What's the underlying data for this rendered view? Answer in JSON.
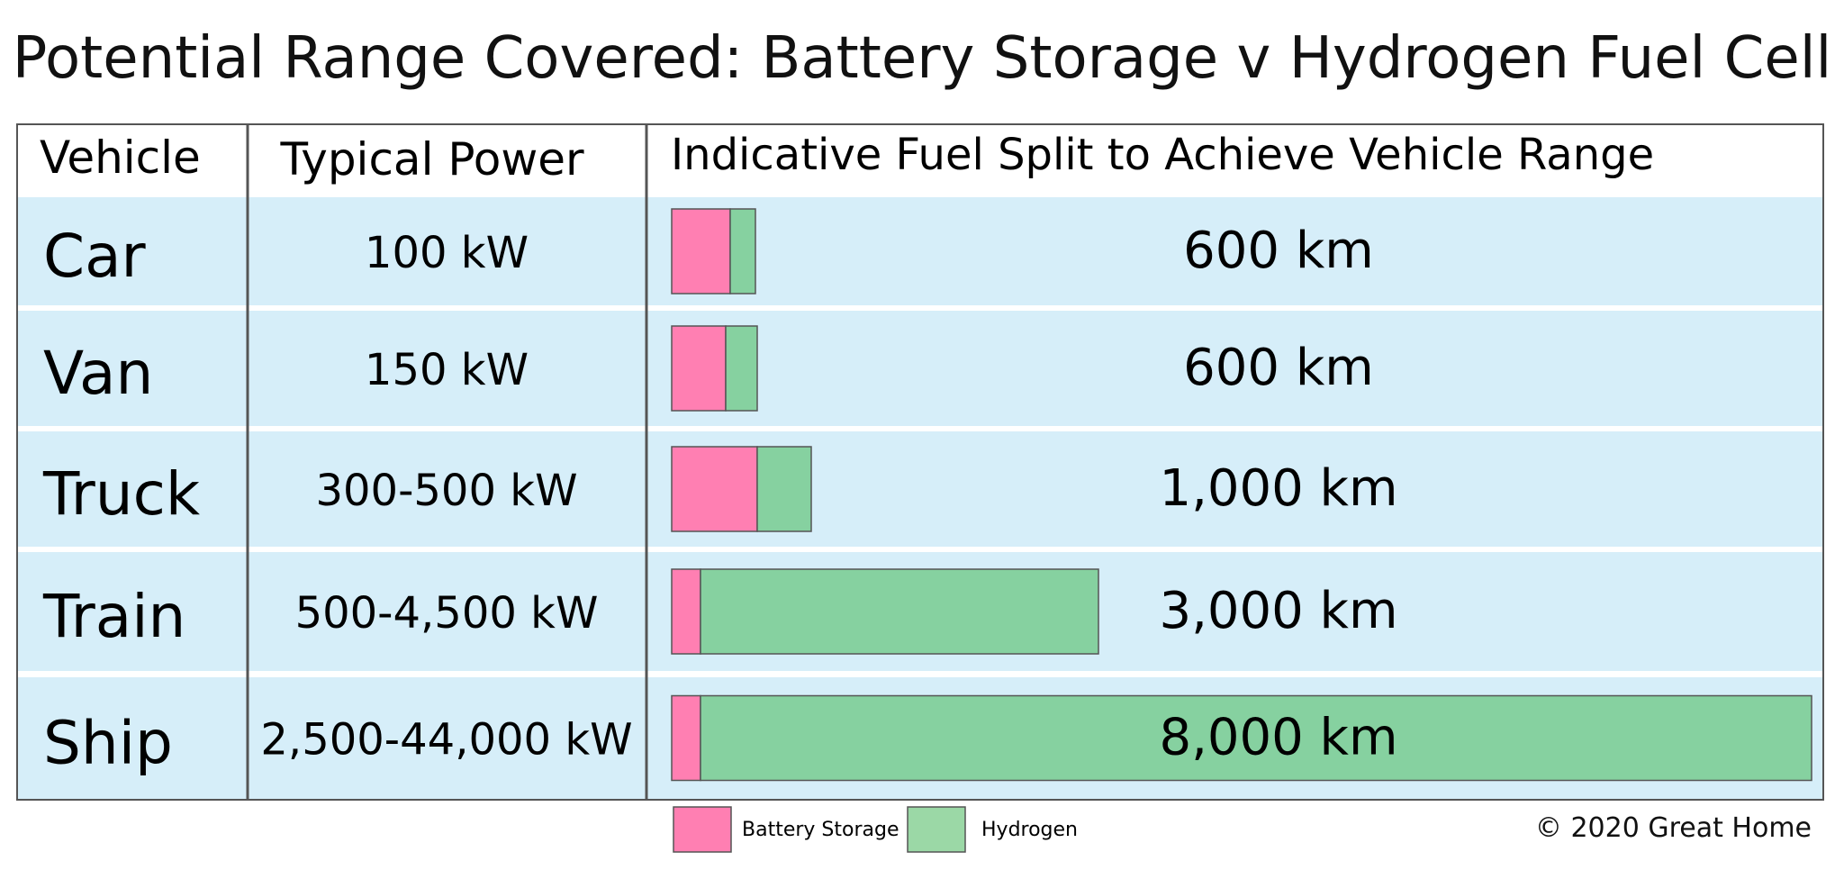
{
  "title": "Potential Range Covered: Battery Storage v Hydrogen Fuel Cell",
  "copyright": "© 2020 Great Home",
  "colors": {
    "row_bg": "#d6eef9",
    "battery": "#ff7fb2",
    "hydrogen": "#86d1a0",
    "legend_hydrogen": "#9bd8a6",
    "border": "#555555"
  },
  "chart_data": {
    "type": "table",
    "headers": [
      "Vehicle",
      "Typical Power",
      "Indicative Fuel Split to Achieve Vehicle Range"
    ],
    "rows": [
      {
        "vehicle": "Car",
        "power": "100 kW",
        "range_label": "600 km",
        "range_km": 600,
        "battery": 65,
        "hydrogen": 28
      },
      {
        "vehicle": "Van",
        "power": "150 kW",
        "range_label": "600 km",
        "range_km": 600,
        "battery": 60,
        "hydrogen": 35
      },
      {
        "vehicle": "Truck",
        "power": "300-500 kW",
        "range_label": "1,000 km",
        "range_km": 1000,
        "battery": 95,
        "hydrogen": 60
      },
      {
        "vehicle": "Train",
        "power": "500-4,500 kW",
        "range_label": "3,000 km",
        "range_km": 3000,
        "battery": 32,
        "hydrogen": 442
      },
      {
        "vehicle": "Ship",
        "power": "2,500-44,000 kW",
        "range_label": "8,000 km",
        "range_km": 8000,
        "battery": 32,
        "hydrogen": 1234
      }
    ],
    "legend": [
      {
        "label": "Battery Storage",
        "color": "#ff7fb2"
      },
      {
        "label": "Hydrogen",
        "color": "#9bd8a6"
      }
    ],
    "legend_position": "bottom-center"
  }
}
